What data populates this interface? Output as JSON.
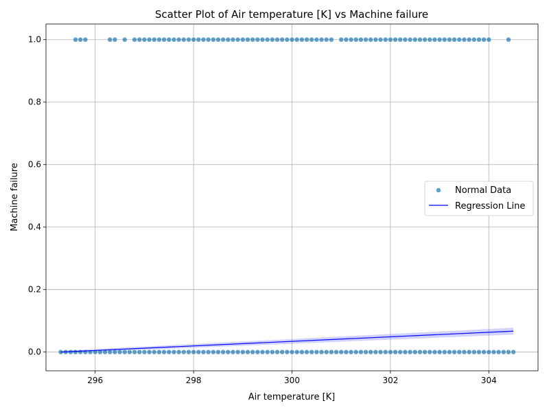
{
  "chart_data": {
    "type": "scatter",
    "title": "Scatter Plot of Air temperature [K] vs Machine failure",
    "xlabel": "Air temperature [K]",
    "ylabel": "Machine failure",
    "xlim": [
      295.0,
      305.0
    ],
    "ylim": [
      -0.06,
      1.05
    ],
    "xticks": [
      296,
      298,
      300,
      302,
      304
    ],
    "xtick_labels": [
      "296",
      "298",
      "300",
      "302",
      "304"
    ],
    "yticks": [
      0.0,
      0.2,
      0.4,
      0.6,
      0.8,
      1.0
    ],
    "ytick_labels": [
      "0.0",
      "0.2",
      "0.4",
      "0.6",
      "0.8",
      "1.0"
    ],
    "grid": true,
    "legend_position": "center-right",
    "series": [
      {
        "name": "Normal Data",
        "kind": "scatter",
        "color": "#1f77b4",
        "points_y0_x": [
          295.3,
          295.4,
          295.5,
          295.6,
          295.7,
          295.8,
          295.9,
          296.0,
          296.1,
          296.2,
          296.3,
          296.4,
          296.5,
          296.6,
          296.7,
          296.8,
          296.9,
          297.0,
          297.1,
          297.2,
          297.3,
          297.4,
          297.5,
          297.6,
          297.7,
          297.8,
          297.9,
          298.0,
          298.1,
          298.2,
          298.3,
          298.4,
          298.5,
          298.6,
          298.7,
          298.8,
          298.9,
          299.0,
          299.1,
          299.2,
          299.3,
          299.4,
          299.5,
          299.6,
          299.7,
          299.8,
          299.9,
          300.0,
          300.1,
          300.2,
          300.3,
          300.4,
          300.5,
          300.6,
          300.7,
          300.8,
          300.9,
          301.0,
          301.1,
          301.2,
          301.3,
          301.4,
          301.5,
          301.6,
          301.7,
          301.8,
          301.9,
          302.0,
          302.1,
          302.2,
          302.3,
          302.4,
          302.5,
          302.6,
          302.7,
          302.8,
          302.9,
          303.0,
          303.1,
          303.2,
          303.3,
          303.4,
          303.5,
          303.6,
          303.7,
          303.8,
          303.9,
          304.0,
          304.1,
          304.2,
          304.3,
          304.4,
          304.5
        ],
        "points_y1_x": [
          295.6,
          295.7,
          295.8,
          296.3,
          296.4,
          296.6,
          296.8,
          296.9,
          297.0,
          297.1,
          297.2,
          297.3,
          297.4,
          297.5,
          297.6,
          297.7,
          297.8,
          297.9,
          298.0,
          298.1,
          298.2,
          298.3,
          298.4,
          298.5,
          298.6,
          298.7,
          298.8,
          298.9,
          299.0,
          299.1,
          299.2,
          299.3,
          299.4,
          299.5,
          299.6,
          299.7,
          299.8,
          299.9,
          300.0,
          300.1,
          300.2,
          300.3,
          300.4,
          300.5,
          300.6,
          300.7,
          300.8,
          301.0,
          301.1,
          301.2,
          301.3,
          301.4,
          301.5,
          301.6,
          301.7,
          301.8,
          301.9,
          302.0,
          302.1,
          302.2,
          302.3,
          302.4,
          302.5,
          302.6,
          302.7,
          302.8,
          302.9,
          303.0,
          303.1,
          303.2,
          303.3,
          303.4,
          303.5,
          303.6,
          303.7,
          303.8,
          303.9,
          304.0,
          304.4
        ]
      },
      {
        "name": "Regression Line",
        "kind": "line",
        "color": "#0000ff",
        "x": [
          295.3,
          304.5
        ],
        "y": [
          0.0,
          0.067
        ],
        "ci_width": [
          0.004,
          0.011
        ],
        "ci_color": "#6a6aff"
      }
    ]
  }
}
